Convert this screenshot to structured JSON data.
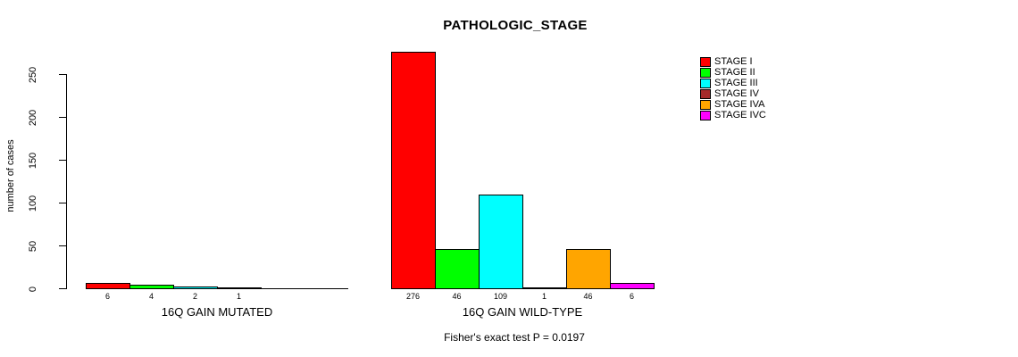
{
  "title": "PATHOLOGIC_STAGE",
  "legend": [
    {
      "label": "STAGE I",
      "color": "#FF0000"
    },
    {
      "label": "STAGE II",
      "color": "#00FF00"
    },
    {
      "label": "STAGE III",
      "color": "#00FFFF"
    },
    {
      "label": "STAGE IV",
      "color": "#A52A2A"
    },
    {
      "label": "STAGE IVA",
      "color": "#FFA500"
    },
    {
      "label": "STAGE IVC",
      "color": "#FF00FF"
    }
  ],
  "chart_data": {
    "type": "bar",
    "title": "PATHOLOGIC_STAGE",
    "ylabel": "number of cases",
    "xlabel": "",
    "ylim": [
      0,
      250
    ],
    "yticks": [
      0,
      50,
      100,
      150,
      200,
      250
    ],
    "grid": false,
    "legend_position": "right",
    "stage_categories": [
      "STAGE I",
      "STAGE II",
      "STAGE III",
      "STAGE IV",
      "STAGE IVA",
      "STAGE IVC"
    ],
    "stage_colors": [
      "#FF0000",
      "#00FF00",
      "#00FFFF",
      "#A52A2A",
      "#FFA500",
      "#FF00FF"
    ],
    "groups": [
      {
        "label": "16Q GAIN MUTATED",
        "values": [
          6,
          4,
          2,
          1,
          0,
          0
        ],
        "bar_labels": [
          "6",
          "4",
          "2",
          "1",
          "",
          ""
        ]
      },
      {
        "label": "16Q GAIN WILD-TYPE",
        "values": [
          276,
          46,
          109,
          1,
          46,
          6
        ],
        "bar_labels": [
          "276",
          "46",
          "109",
          "1",
          "46",
          "6"
        ]
      }
    ],
    "annotation": "Fisher's exact test P = 0.0197"
  }
}
